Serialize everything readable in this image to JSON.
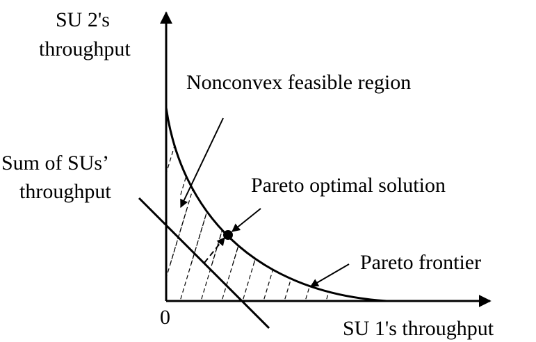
{
  "labels": {
    "y_axis_line1": "SU 2's",
    "y_axis_line2": "throughput",
    "x_axis": "SU 1's throughput",
    "origin": "0",
    "nonconvex": "Nonconvex feasible region",
    "sum_line1": "Sum of SUs’",
    "sum_line2": "throughput",
    "pareto_optimal": "Pareto optimal solution",
    "pareto_frontier": "Pareto frontier"
  },
  "colors": {
    "ink": "#000000",
    "background": "#ffffff"
  }
}
